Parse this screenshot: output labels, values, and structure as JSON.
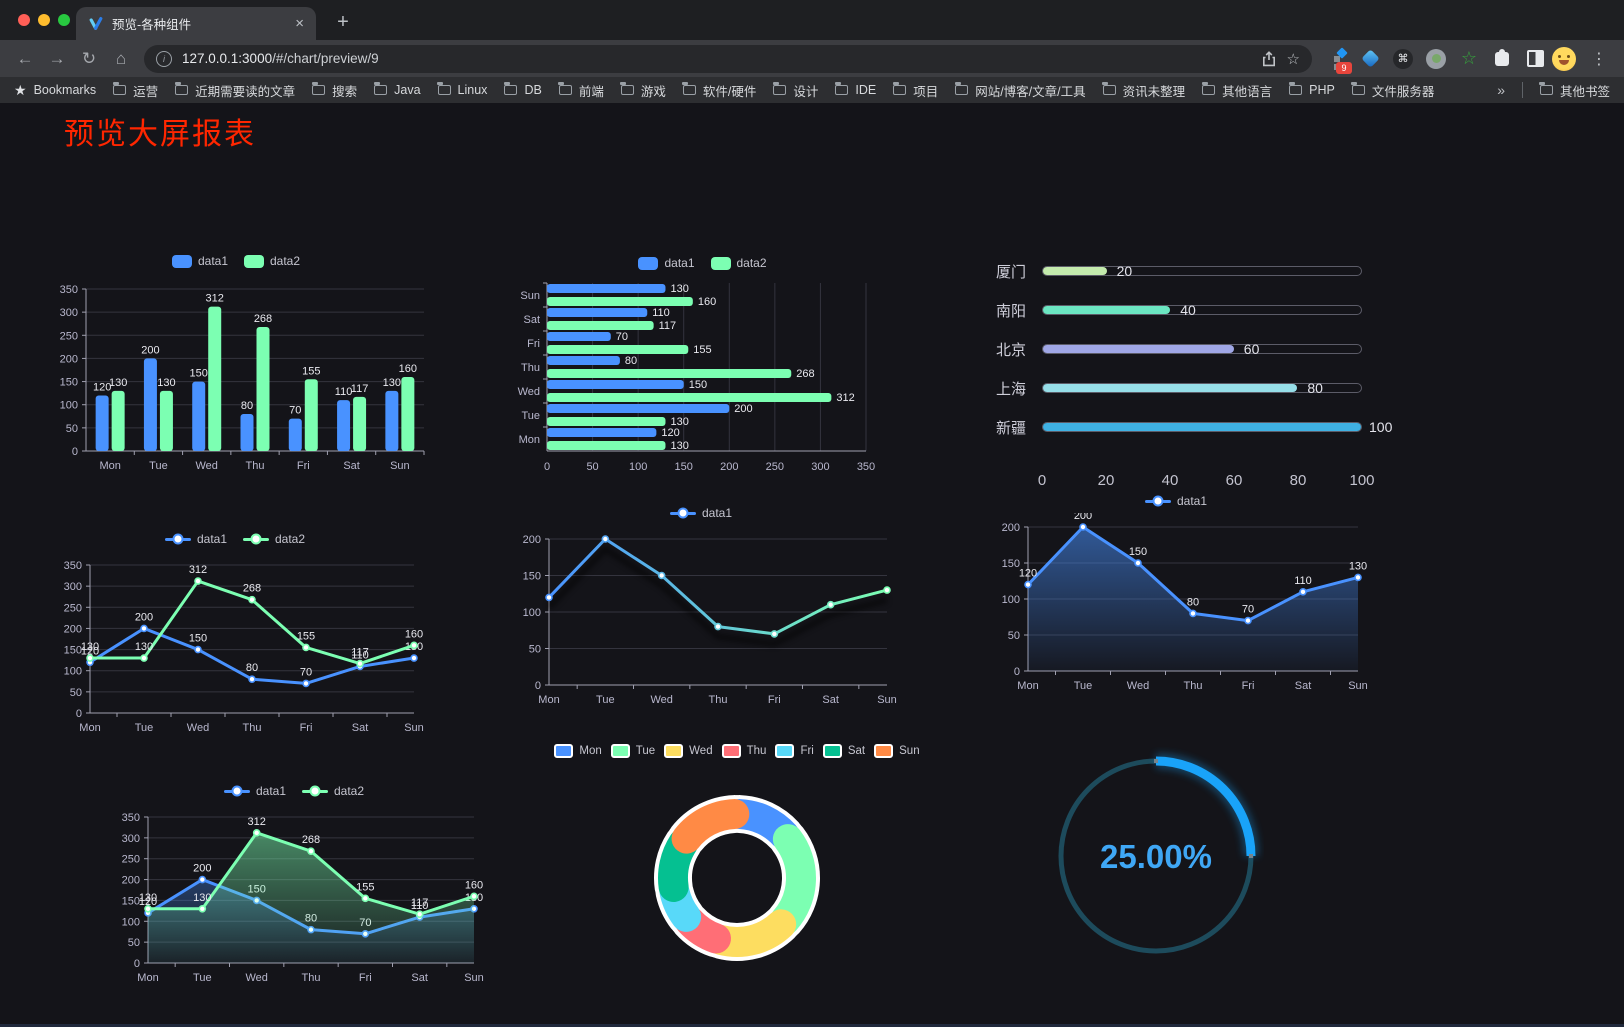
{
  "browser": {
    "tab_title": "预览-各种组件",
    "close_glyph": "×",
    "new_tab_glyph": "+",
    "info_glyph": "i",
    "url_host": "127.0.0.1:3000",
    "url_path": "/#/chart/preview/9",
    "nav": {
      "back": "←",
      "forward": "→",
      "reload": "↻",
      "home": "⌂",
      "menu": "⋮"
    },
    "star_glyph": "☆",
    "cmd_glyph": "⌘",
    "ext_star_glyph": "☆",
    "extensions_badge": "9",
    "bookmarks_star": "★",
    "bookmarks_title": "Bookmarks",
    "bookmarks": [
      "运营",
      "近期需要读的文章",
      "搜索",
      "Java",
      "Linux",
      "DB",
      "前端",
      "游戏",
      "软件/硬件",
      "设计",
      "IDE",
      "项目",
      "网站/博客/文章/工具",
      "资讯未整理",
      "其他语言",
      "PHP",
      "文件服务器"
    ],
    "overflow": "»",
    "other_bookmarks": "其他书签"
  },
  "page": {
    "title": "预览大屏报表",
    "title_color": "#ff2600",
    "background": "#141419"
  },
  "chart_data": [
    {
      "id": "grouped-bar",
      "type": "bar",
      "legend": "bar",
      "labels": true,
      "categories": [
        "Mon",
        "Tue",
        "Wed",
        "Thu",
        "Fri",
        "Sat",
        "Sun"
      ],
      "series": [
        {
          "name": "data1",
          "color": "#4992ff",
          "values": [
            120,
            200,
            150,
            80,
            70,
            110,
            130
          ]
        },
        {
          "name": "data2",
          "color": "#7cffb2",
          "values": [
            130,
            130,
            312,
            268,
            155,
            117,
            160
          ]
        }
      ],
      "ylim": [
        0,
        350
      ],
      "ytick": 50
    },
    {
      "id": "grouped-hbar",
      "type": "hbar",
      "legend": "bar",
      "labels": true,
      "categories": [
        "Mon",
        "Tue",
        "Wed",
        "Thu",
        "Fri",
        "Sat",
        "Sun"
      ],
      "series": [
        {
          "name": "data1",
          "color": "#4992ff",
          "values": [
            120,
            200,
            150,
            80,
            70,
            110,
            130
          ]
        },
        {
          "name": "data2",
          "color": "#7cffb2",
          "values": [
            130,
            130,
            312,
            268,
            155,
            117,
            160
          ]
        }
      ],
      "xlim": [
        0,
        350
      ],
      "xtick": 50
    },
    {
      "id": "city-progress",
      "type": "progress",
      "max": 100,
      "ticks": [
        0,
        20,
        40,
        60,
        80,
        100
      ],
      "rows": [
        {
          "label": "厦门",
          "value": 20,
          "color": "#c4ebad"
        },
        {
          "label": "南阳",
          "value": 40,
          "color": "#6be6c1"
        },
        {
          "label": "北京",
          "value": 60,
          "color": "#a0a7e6"
        },
        {
          "label": "上海",
          "value": 80,
          "color": "#96dee8"
        },
        {
          "label": "新疆",
          "value": 100,
          "color": "#3fb1e3"
        }
      ]
    },
    {
      "id": "double-line",
      "type": "line",
      "legend": "line",
      "labels": true,
      "categories": [
        "Mon",
        "Tue",
        "Wed",
        "Thu",
        "Fri",
        "Sat",
        "Sun"
      ],
      "series": [
        {
          "name": "data1",
          "color": "#4992ff",
          "values": [
            120,
            200,
            150,
            80,
            70,
            110,
            130
          ]
        },
        {
          "name": "data2",
          "color": "#7cffb2",
          "values": [
            130,
            130,
            312,
            268,
            155,
            117,
            160
          ]
        }
      ],
      "ylim": [
        0,
        350
      ],
      "ytick": 50
    },
    {
      "id": "gradient-line",
      "type": "line",
      "legend": "line",
      "labels": false,
      "categories": [
        "Mon",
        "Tue",
        "Wed",
        "Thu",
        "Fri",
        "Sat",
        "Sun"
      ],
      "series": [
        {
          "name": "data1",
          "color": "#4992ff",
          "color2": "#7cffb2",
          "gradient": true,
          "shadow": true,
          "values": [
            120,
            200,
            150,
            80,
            70,
            110,
            130
          ]
        }
      ],
      "ylim": [
        0,
        200
      ],
      "ytick": 50
    },
    {
      "id": "area-line",
      "type": "line",
      "legend": "line",
      "labels": true,
      "categories": [
        "Mon",
        "Tue",
        "Wed",
        "Thu",
        "Fri",
        "Sat",
        "Sun"
      ],
      "series": [
        {
          "name": "data1",
          "color": "#4992ff",
          "area": true,
          "values": [
            120,
            200,
            150,
            80,
            70,
            110,
            130
          ]
        }
      ],
      "ylim": [
        0,
        200
      ],
      "ytick": 50
    },
    {
      "id": "double-area",
      "type": "line",
      "legend": "line",
      "labels": true,
      "categories": [
        "Mon",
        "Tue",
        "Wed",
        "Thu",
        "Fri",
        "Sat",
        "Sun"
      ],
      "series": [
        {
          "name": "data1",
          "color": "#4992ff",
          "area": true,
          "values": [
            120,
            200,
            150,
            80,
            70,
            110,
            130
          ]
        },
        {
          "name": "data2",
          "color": "#7cffb2",
          "area": true,
          "values": [
            130,
            130,
            312,
            268,
            155,
            117,
            160
          ]
        }
      ],
      "ylim": [
        0,
        350
      ],
      "ytick": 50
    },
    {
      "id": "week-donut",
      "type": "pie",
      "legend": "pie",
      "items": [
        {
          "label": "Mon",
          "value": 120,
          "color": "#4992ff"
        },
        {
          "label": "Tue",
          "value": 200,
          "color": "#7cffb2"
        },
        {
          "label": "Wed",
          "value": 150,
          "color": "#fddd60"
        },
        {
          "label": "Thu",
          "value": 80,
          "color": "#ff6e76"
        },
        {
          "label": "Fri",
          "value": 70,
          "color": "#58d9f9"
        },
        {
          "label": "Sat",
          "value": 110,
          "color": "#05c091"
        },
        {
          "label": "Sun",
          "value": 130,
          "color": "#ff8a45"
        }
      ]
    },
    {
      "id": "percent-gauge",
      "type": "gauge",
      "label": "25.00%",
      "percent": 25,
      "color": "#19a3f9",
      "track": "#1d4b5c",
      "text_color": "#3fa7f5"
    }
  ]
}
